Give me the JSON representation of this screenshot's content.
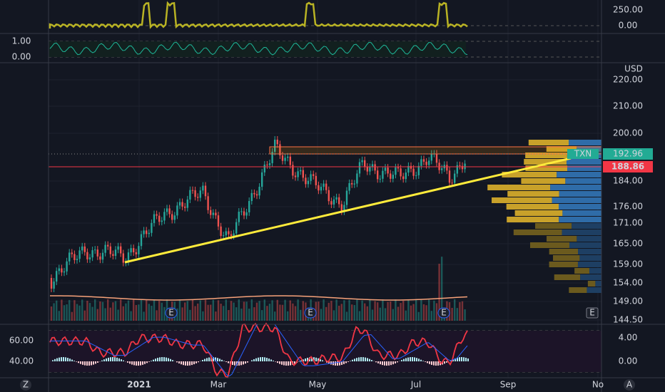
{
  "top_pane": {
    "ticks": [
      "250.00",
      "0.00"
    ]
  },
  "oscillator_pane": {
    "ticks": [
      "1.00",
      "0.00"
    ]
  },
  "main_pane": {
    "currency": "USD",
    "ticks": [
      "220.00",
      "210.00",
      "200.00",
      "184.00",
      "176.00",
      "171.00",
      "165.00",
      "159.00",
      "154.00",
      "149.00",
      "144.50"
    ],
    "symbol": "TXN",
    "last_price": "192.96",
    "line_price": "188.86",
    "earnings_markers": [
      "E",
      "E",
      "E",
      "E"
    ]
  },
  "bottom_pane": {
    "left_ticks": [
      "60.00",
      "40.00"
    ],
    "right_ticks": [
      "4.00",
      "0.00"
    ]
  },
  "time_axis": [
    "2021",
    "Mar",
    "May",
    "Jul",
    "Sep",
    "No"
  ],
  "corners": {
    "left": "Z",
    "right": "A"
  }
}
